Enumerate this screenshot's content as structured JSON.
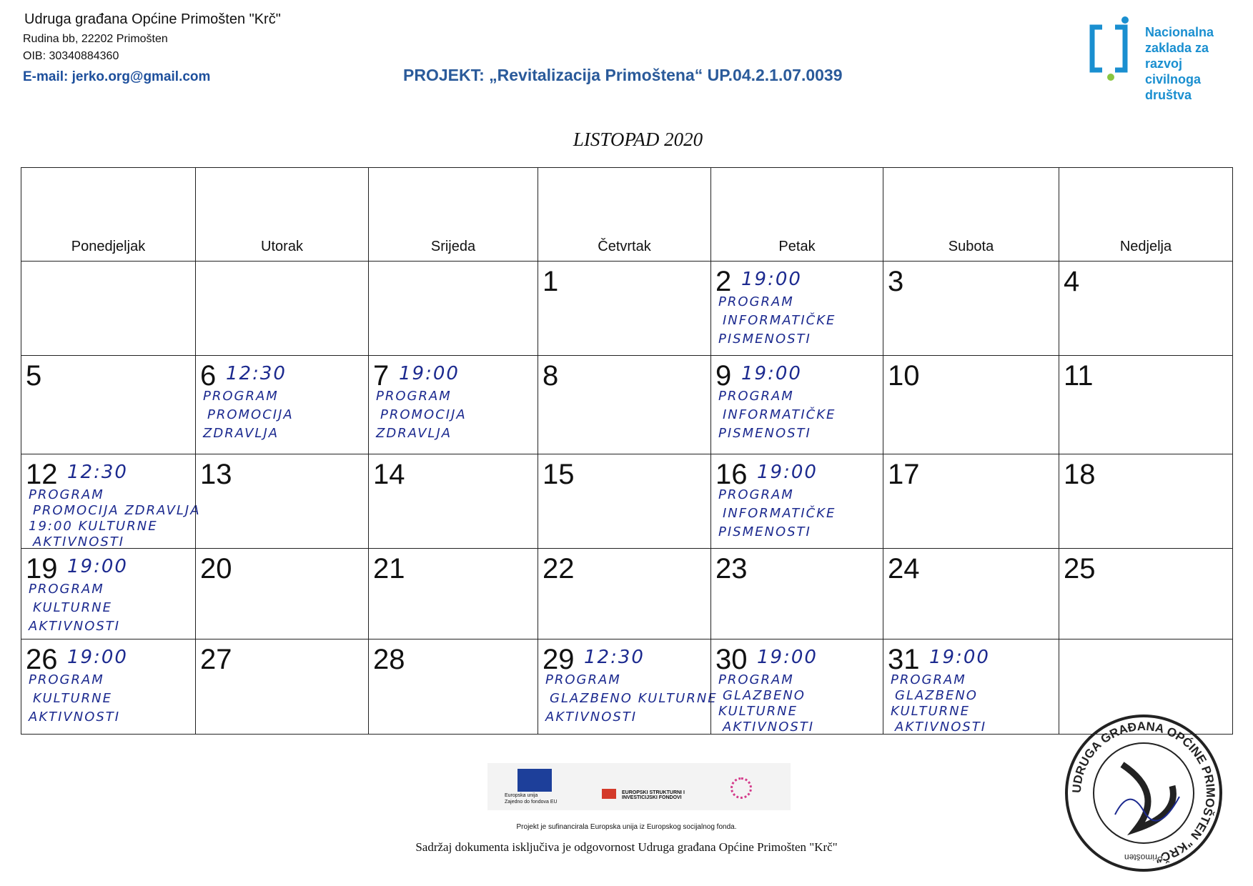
{
  "header": {
    "organization": "Udruga građana Općine Primošten \"Krč\"",
    "address": "Rudina bb, 22202 Primošten",
    "oib": "OIB: 30340884360",
    "email": "E-mail: jerko.org@gmail.com",
    "project": "PROJEKT: „Revitalizacija Primoštena“ UP.04.2.1.07.0039",
    "logo_text": [
      "Nacionalna",
      "zaklada za",
      "razvoj",
      "civilnoga",
      "društva"
    ]
  },
  "calendar": {
    "title": "LISTOPAD 2020",
    "weekdays": [
      "Ponedjeljak",
      "Utorak",
      "Srijeda",
      "Četvrtak",
      "Petak",
      "Subota",
      "Nedjelja"
    ],
    "weeks": [
      [
        null,
        null,
        null,
        {
          "day": "1"
        },
        {
          "day": "2",
          "time": "19:00",
          "lines": [
            "PROGRAM",
            "INFORMATIČKE",
            "PISMENOSTI"
          ]
        },
        {
          "day": "3"
        },
        {
          "day": "4"
        }
      ],
      [
        {
          "day": "5"
        },
        {
          "day": "6",
          "time": "12:30",
          "lines": [
            "PROGRAM",
            "PROMOCIJA",
            "ZDRAVLJA"
          ]
        },
        {
          "day": "7",
          "time": "19:00",
          "lines": [
            "PROGRAM",
            "PROMOCIJA",
            "ZDRAVLJA"
          ]
        },
        {
          "day": "8"
        },
        {
          "day": "9",
          "time": "19:00",
          "lines": [
            "PROGRAM",
            "INFORMATIČKE",
            "PISMENOSTI"
          ]
        },
        {
          "day": "10"
        },
        {
          "day": "11"
        }
      ],
      [
        {
          "day": "12",
          "time": "12:30",
          "lines": [
            "PROGRAM",
            "PROMOCIJA ZDRAVLJA",
            "19:00 KULTURNE",
            "AKTIVNOSTI"
          ]
        },
        {
          "day": "13"
        },
        {
          "day": "14"
        },
        {
          "day": "15"
        },
        {
          "day": "16",
          "time": "19:00",
          "lines": [
            "PROGRAM",
            "INFORMATIČKE",
            "PISMENOSTI"
          ]
        },
        {
          "day": "17"
        },
        {
          "day": "18"
        }
      ],
      [
        {
          "day": "19",
          "time": "19:00",
          "lines": [
            "PROGRAM",
            "KULTURNE",
            "AKTIVNOSTI"
          ]
        },
        {
          "day": "20"
        },
        {
          "day": "21"
        },
        {
          "day": "22"
        },
        {
          "day": "23"
        },
        {
          "day": "24"
        },
        {
          "day": "25"
        }
      ],
      [
        {
          "day": "26",
          "time": "19:00",
          "lines": [
            "PROGRAM",
            "KULTURNE",
            "AKTIVNOSTI"
          ]
        },
        {
          "day": "27"
        },
        {
          "day": "28"
        },
        {
          "day": "29",
          "time": "12:30",
          "lines": [
            "PROGRAM",
            "GLAZBENO KULTURNE",
            "AKTIVNOSTI"
          ]
        },
        {
          "day": "30",
          "time": "19:00",
          "lines": [
            "PROGRAM",
            "GLAZBENO",
            "KULTURNE",
            "AKTIVNOSTI"
          ]
        },
        {
          "day": "31",
          "time": "19:00",
          "lines": [
            "PROGRAM",
            "GLAZBENO",
            "KULTURNE",
            "AKTIVNOSTI"
          ]
        },
        null
      ]
    ]
  },
  "footer": {
    "eu_label": "Europska unija",
    "eu_sub": "Zajedno do fondova EU",
    "esif": "EUROPSKI STRUKTURNI I INVESTICIJSKI FONDOVI",
    "cofunded": "Projekt je sufinancirala Europska unija iz Europskog socijalnog fonda.",
    "disclaimer": "Sadržaj dokumenta isključiva je odgovornost Udruga građana Općine Primošten \"Krč\"",
    "stamp_ring": "UDRUGA GRAĐANA OPĆINE PRIMOŠTEN \"KRČ\"",
    "stamp_place": "Primošten"
  }
}
